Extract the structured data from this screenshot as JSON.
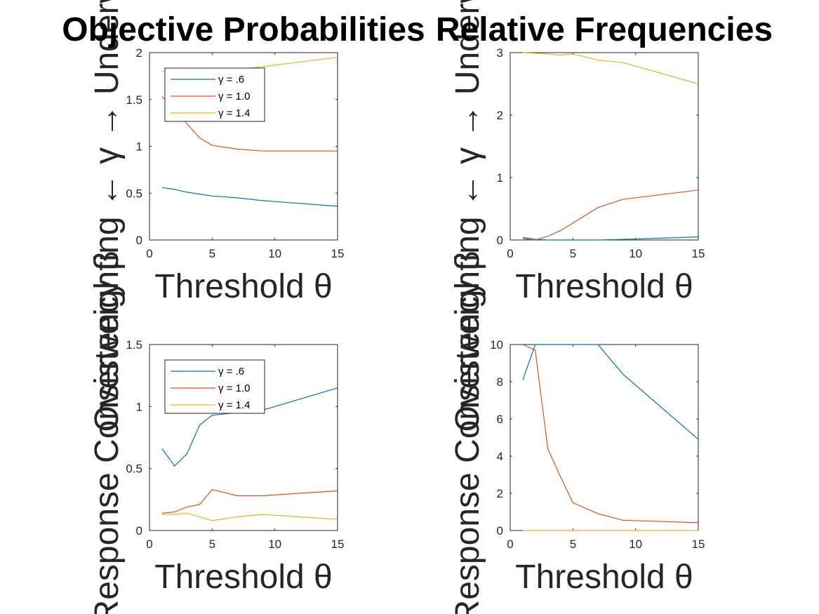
{
  "chart_data": [
    {
      "type": "line",
      "title": "Objective Probabilities",
      "xlabel": "Threshold θ",
      "ylabel": "Overweighting ← γ → Underweighting",
      "xlim": [
        0,
        15
      ],
      "ylim": [
        0,
        2
      ],
      "xticks": [
        0,
        5,
        10,
        15
      ],
      "xtick_labels": [
        "0",
        "5",
        "10",
        "15"
      ],
      "yticks": [
        0,
        0.5,
        1,
        1.5,
        2
      ],
      "ytick_labels": [
        "0",
        "0.5",
        "1",
        "1.5",
        "2"
      ],
      "legend": {
        "placement": "top-left",
        "entries": [
          "γ = .6",
          "γ = 1.0",
          "γ = 1.4"
        ]
      },
      "series": [
        {
          "name": "γ = .6",
          "color": "#0072BD",
          "x": [
            1,
            2,
            3,
            4,
            5,
            7,
            9,
            15
          ],
          "y": [
            0.56,
            0.54,
            0.51,
            0.49,
            0.47,
            0.45,
            0.42,
            0.36
          ]
        },
        {
          "name": "γ = 1.0",
          "color": "#D95319",
          "x": [
            1,
            2,
            3,
            4,
            5,
            7,
            9,
            15
          ],
          "y": [
            1.53,
            1.4,
            1.24,
            1.09,
            1.01,
            0.97,
            0.95,
            0.95
          ]
        },
        {
          "name": "γ = 1.4",
          "color": "#EDB120",
          "x": [
            1,
            2,
            3,
            4,
            5,
            7,
            9,
            15
          ],
          "y": [
            1.8,
            1.79,
            1.79,
            1.8,
            1.81,
            1.82,
            1.85,
            1.95
          ]
        }
      ]
    },
    {
      "type": "line",
      "title": "Relative Frequencies",
      "xlabel": "Threshold θ",
      "ylabel": "Overweighting ← γ → Underweighting",
      "xlim": [
        0,
        15
      ],
      "ylim": [
        0,
        3
      ],
      "xticks": [
        0,
        5,
        10,
        15
      ],
      "xtick_labels": [
        "0",
        "5",
        "10",
        "15"
      ],
      "yticks": [
        0,
        1,
        2,
        3
      ],
      "ytick_labels": [
        "0",
        "1",
        "2",
        "3"
      ],
      "series": [
        {
          "color": "#0072BD",
          "x": [
            1,
            2,
            3,
            4,
            5,
            7,
            9,
            15
          ],
          "y": [
            0.04,
            0.01,
            0.0,
            0.0,
            0.0,
            0.0,
            0.01,
            0.05
          ]
        },
        {
          "color": "#D95319",
          "x": [
            1,
            2,
            3,
            4,
            5,
            7,
            9,
            15
          ],
          "y": [
            0.02,
            0.0,
            0.06,
            0.15,
            0.27,
            0.52,
            0.65,
            0.8
          ]
        },
        {
          "color": "#EDB120",
          "x": [
            1,
            2,
            3,
            4,
            5,
            7,
            9,
            15
          ],
          "y": [
            3.0,
            2.99,
            2.98,
            2.96,
            2.98,
            2.88,
            2.84,
            2.5
          ]
        }
      ]
    },
    {
      "type": "line",
      "title": "",
      "xlabel": "Threshold θ",
      "ylabel": "Response Consistency β",
      "xlim": [
        0,
        15
      ],
      "ylim": [
        0,
        1.5
      ],
      "xticks": [
        0,
        5,
        10,
        15
      ],
      "xtick_labels": [
        "0",
        "5",
        "10",
        "15"
      ],
      "yticks": [
        0,
        0.5,
        1,
        1.5
      ],
      "ytick_labels": [
        "0",
        "0.5",
        "1",
        "1.5"
      ],
      "legend": {
        "placement": "top-left",
        "entries": [
          "γ = .6",
          "γ = 1.0",
          "γ = 1.4"
        ]
      },
      "series": [
        {
          "name": "γ = .6",
          "color": "#0072BD",
          "x": [
            1,
            2,
            3,
            4,
            5,
            7,
            9,
            15
          ],
          "y": [
            0.66,
            0.52,
            0.62,
            0.85,
            0.93,
            0.95,
            0.97,
            1.15
          ]
        },
        {
          "name": "γ = 1.0",
          "color": "#D95319",
          "x": [
            1,
            2,
            3,
            4,
            5,
            7,
            9,
            15
          ],
          "y": [
            0.14,
            0.15,
            0.19,
            0.21,
            0.33,
            0.28,
            0.28,
            0.32
          ]
        },
        {
          "name": "γ = 1.4",
          "color": "#EDB120",
          "x": [
            1,
            2,
            3,
            4,
            5,
            7,
            9,
            15
          ],
          "y": [
            0.13,
            0.13,
            0.14,
            0.11,
            0.08,
            0.11,
            0.13,
            0.09
          ]
        }
      ]
    },
    {
      "type": "line",
      "title": "",
      "xlabel": "Threshold θ",
      "ylabel": "Response Consistency β",
      "xlim": [
        0,
        15
      ],
      "ylim": [
        0,
        10
      ],
      "xticks": [
        0,
        5,
        10,
        15
      ],
      "xtick_labels": [
        "0",
        "5",
        "10",
        "15"
      ],
      "yticks": [
        0,
        2,
        4,
        6,
        8,
        10
      ],
      "ytick_labels": [
        "0",
        "2",
        "4",
        "6",
        "8",
        "10"
      ],
      "series": [
        {
          "color": "#0072BD",
          "x": [
            1,
            2,
            3,
            4,
            5,
            7,
            9,
            15
          ],
          "y": [
            8.1,
            10.0,
            10.0,
            10.0,
            10.0,
            10.0,
            8.4,
            4.9
          ]
        },
        {
          "color": "#D95319",
          "x": [
            1,
            2,
            3,
            4,
            5,
            7,
            9,
            15
          ],
          "y": [
            10.0,
            9.7,
            4.4,
            2.9,
            1.5,
            0.9,
            0.55,
            0.42
          ]
        },
        {
          "color": "#EDB120",
          "x": [
            1,
            2,
            3,
            4,
            5,
            7,
            9,
            15
          ],
          "y": [
            0.0,
            0.0,
            0.0,
            0.0,
            0.0,
            0.0,
            0.0,
            0.0
          ]
        }
      ]
    }
  ]
}
